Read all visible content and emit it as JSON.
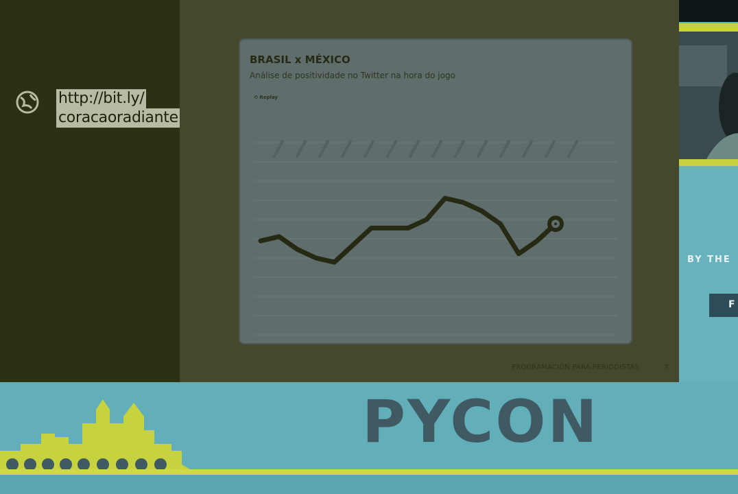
{
  "link": {
    "line1": "http://bit.ly/",
    "line2": "coracaoradiante",
    "icon": "globe-icon"
  },
  "slide": {
    "footer": "PROGRAMACIÓN PARA PERIODISTAS",
    "page_number": "7"
  },
  "chart_data": {
    "type": "line",
    "title": "BRASIL x MÉXICO",
    "subtitle": "Análise de positividade no Twitter na hora do jogo",
    "replay_label": "Replay",
    "series": [
      {
        "values": [
          52,
          53,
          50,
          48,
          47,
          51,
          55,
          55,
          55,
          57,
          62,
          61,
          59,
          56,
          49,
          52,
          56
        ]
      }
    ],
    "ylim": [
      30,
      75
    ],
    "grid": true,
    "end_marker": true
  },
  "right_strip": {
    "by_the": "BY THE",
    "ribbon_letter": "F"
  },
  "banner": {
    "title": "PYCON"
  },
  "colors": {
    "dark_panel": "#2b3112",
    "chart_bg": "#5f6e6c",
    "line": "#262a14",
    "teal": "#62aeb9",
    "yellow": "#cfd848"
  }
}
